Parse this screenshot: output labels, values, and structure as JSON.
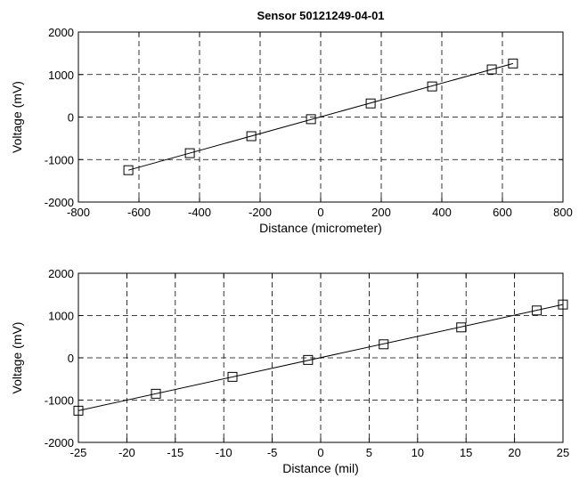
{
  "title": "Sensor 50121249-04-01",
  "chart_data": [
    {
      "type": "line",
      "title": "Sensor 50121249-04-01",
      "xlabel": "Distance (micrometer)",
      "ylabel": "Voltage (mV)",
      "xlim": [
        -800,
        800
      ],
      "ylim": [
        -2000,
        2000
      ],
      "xticks": [
        -800,
        -600,
        -400,
        -200,
        0,
        200,
        400,
        600,
        800
      ],
      "yticks": [
        -2000,
        -1000,
        0,
        1000,
        2000
      ],
      "grid": true,
      "series": [
        {
          "x": [
            -635,
            -432,
            -229,
            -32,
            165,
            368,
            565,
            635
          ],
          "y": [
            -1250,
            -850,
            -450,
            -50,
            320,
            720,
            1120,
            1260
          ],
          "marker": "square"
        }
      ],
      "fit_line": {
        "x": [
          -635,
          635
        ],
        "y": [
          -1250,
          1260
        ]
      }
    },
    {
      "type": "line",
      "title": "",
      "xlabel": "Distance (mil)",
      "ylabel": "Voltage (mV)",
      "xlim": [
        -25,
        25
      ],
      "ylim": [
        -2000,
        2000
      ],
      "xticks": [
        -25,
        -20,
        -15,
        -10,
        -5,
        0,
        5,
        10,
        15,
        20,
        25
      ],
      "yticks": [
        -2000,
        -1000,
        0,
        1000,
        2000
      ],
      "grid": true,
      "series": [
        {
          "x": [
            -25,
            -17,
            -9.1,
            -1.3,
            6.5,
            14.5,
            22.3,
            25
          ],
          "y": [
            -1250,
            -850,
            -450,
            -50,
            320,
            720,
            1120,
            1260
          ],
          "marker": "square"
        }
      ],
      "fit_line": {
        "x": [
          -25,
          25
        ],
        "y": [
          -1250,
          1260
        ]
      }
    }
  ]
}
